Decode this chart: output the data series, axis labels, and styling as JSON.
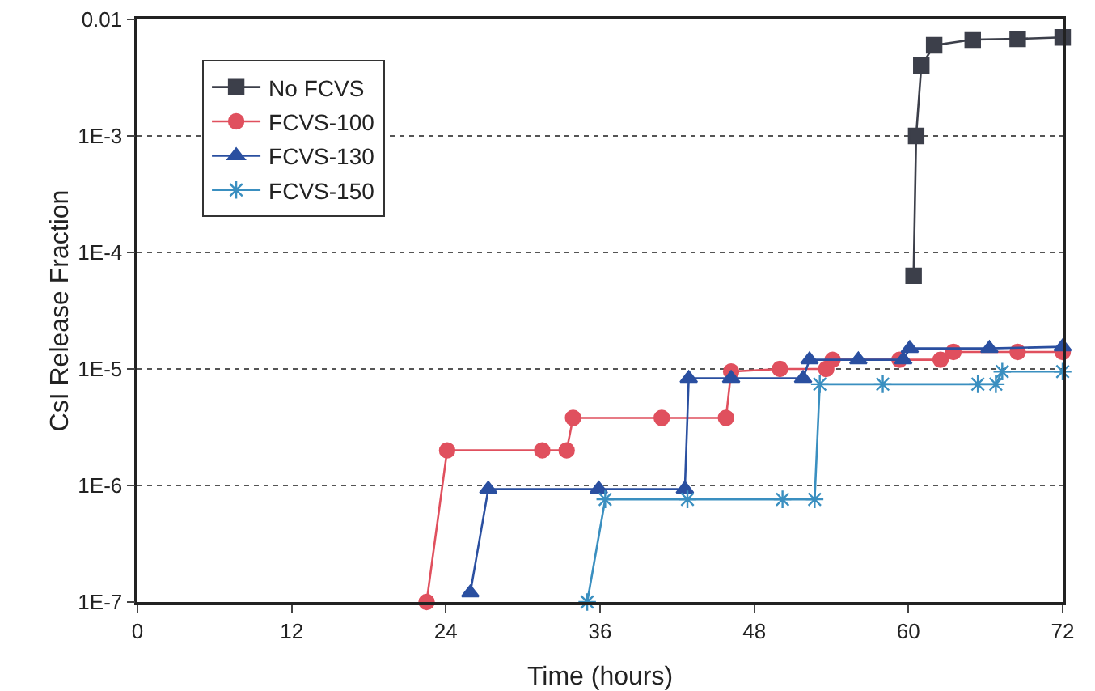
{
  "chart_data": {
    "type": "line",
    "xlabel": "Time (hours)",
    "ylabel": "CsI Release Fraction",
    "log": "y",
    "grid": "y",
    "legend": "top left",
    "line_style": "solid",
    "xlim": [
      0,
      72
    ],
    "xticks": [
      0,
      12,
      24,
      36,
      48,
      60,
      72
    ],
    "ylim": [
      1e-07,
      0.01
    ],
    "yticks": [
      {
        "value": 0.01,
        "label": "0.01"
      },
      {
        "value": 0.001,
        "label": "1E-3"
      },
      {
        "value": 0.0001,
        "label": "1E-4"
      },
      {
        "value": 1e-05,
        "label": "1E-5"
      },
      {
        "value": 1e-06,
        "label": "1E-6"
      },
      {
        "value": 1e-07,
        "label": "1E-7"
      }
    ],
    "series": [
      {
        "name": "No FCVS",
        "color": "#3c3f4a",
        "marker": "square",
        "x": [
          60.4,
          60.6,
          61,
          62,
          65,
          68.5,
          72
        ],
        "values": [
          6.3e-05,
          0.001,
          0.004,
          0.006,
          0.0067,
          0.0068,
          0.007
        ]
      },
      {
        "name": "FCVS-100",
        "color": "#e0505e",
        "marker": "circle",
        "x": [
          22.5,
          24.1,
          31.5,
          33.4,
          33.9,
          40.8,
          45.8,
          46.2,
          50,
          53.6,
          54.1,
          59.3,
          62.5,
          63.5,
          68.5,
          72
        ],
        "values": [
          1e-07,
          2e-06,
          2e-06,
          2e-06,
          3.8e-06,
          3.8e-06,
          3.8e-06,
          9.5e-06,
          1e-05,
          1e-05,
          1.2e-05,
          1.2e-05,
          1.2e-05,
          1.4e-05,
          1.4e-05,
          1.4e-05
        ]
      },
      {
        "name": "FCVS-130",
        "color": "#2a4fa0",
        "marker": "triangle",
        "x": [
          25.9,
          27.3,
          35.9,
          42.6,
          42.9,
          46.2,
          51.8,
          52.3,
          56.1,
          59.6,
          60.1,
          66.3,
          72
        ],
        "values": [
          1.2e-07,
          9.3e-07,
          9.3e-07,
          9.3e-07,
          8.3e-06,
          8.3e-06,
          8.3e-06,
          1.2e-05,
          1.2e-05,
          1.2e-05,
          1.5e-05,
          1.5e-05,
          1.55e-05
        ]
      },
      {
        "name": "FCVS-150",
        "color": "#3a8fc0",
        "marker": "cross",
        "x": [
          35,
          36.4,
          42.8,
          50.2,
          52.7,
          53.1,
          58,
          65.4,
          66.8,
          67.3,
          72
        ],
        "values": [
          1e-07,
          7.6e-07,
          7.6e-07,
          7.6e-07,
          7.6e-07,
          7.4e-06,
          7.4e-06,
          7.4e-06,
          7.4e-06,
          9.5e-06,
          9.5e-06
        ]
      }
    ]
  }
}
